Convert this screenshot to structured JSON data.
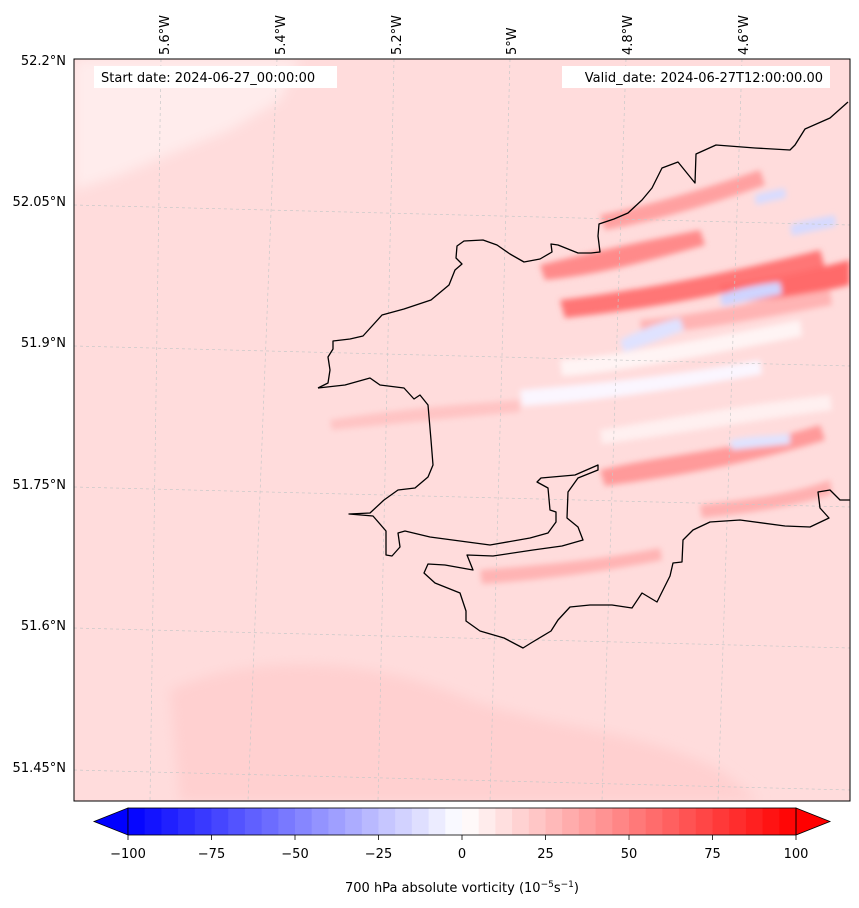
{
  "map": {
    "start_date_label": "Start date: 2024-06-27_00:00:00",
    "valid_date_label": "Valid_date: 2024-06-27T12:00:00.00",
    "lon_labels": [
      "5.6°W",
      "5.4°W",
      "5.2°W",
      "5°W",
      "4.8°W",
      "4.6°W"
    ],
    "lat_labels": [
      "52.2°N",
      "52.05°N",
      "51.9°N",
      "51.75°N",
      "51.6°N",
      "51.45°N"
    ],
    "field_base_color": "#ffdcdc",
    "coastline_color": "#000000"
  },
  "colorbar": {
    "min": -100,
    "max": 100,
    "ticks": [
      -100,
      -75,
      -50,
      -25,
      0,
      25,
      50,
      75,
      100
    ],
    "tick_labels": [
      "−100",
      "−75",
      "−50",
      "−25",
      "0",
      "25",
      "50",
      "75",
      "100"
    ],
    "label_text": "700 hPa absolute vorticity (10",
    "label_exp1": "−5",
    "label_mid": "s",
    "label_exp2": "−1",
    "label_close": ")",
    "cmap": "bwr",
    "low_color": "#0000ff",
    "mid_color": "#ffffff",
    "high_color": "#ff0000"
  }
}
